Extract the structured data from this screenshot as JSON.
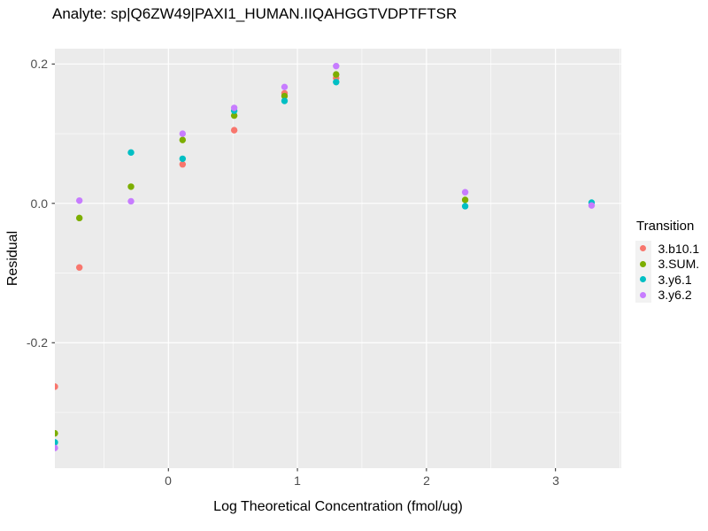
{
  "title": "Analyte: sp|Q6ZW49|PAXI1_HUMAN.IIQAHGGTVDPTFTSR",
  "axes": {
    "x_title": "Log Theoretical Concentration (fmol/ug)",
    "y_title": "Residual",
    "x_tick_labels": [
      "0",
      "1",
      "2",
      "3"
    ],
    "y_tick_labels": [
      "0.2",
      "0.0",
      "-0.2"
    ]
  },
  "legend": {
    "title": "Transition",
    "items": [
      {
        "label": "3.b10.1",
        "color": "#F8766D"
      },
      {
        "label": "3.SUM.",
        "color": "#7CAE00"
      },
      {
        "label": "3.y6.1",
        "color": "#00BFC4"
      },
      {
        "label": "3.y6.2",
        "color": "#C77CFF"
      }
    ]
  },
  "colors": {
    "panel_bg": "#EBEBEB",
    "gridline": "#FFFFFF",
    "tick_mark": "#333333",
    "tick_text": "#4D4D4D",
    "legend_key_bg": "#F2F2F2",
    "text": "#000000"
  },
  "chart_data": {
    "type": "scatter",
    "title": "Analyte: sp|Q6ZW49|PAXI1_HUMAN.IIQAHGGTVDPTFTSR",
    "xlabel": "Log Theoretical Concentration (fmol/ug)",
    "ylabel": "Residual",
    "xlim": [
      -0.88,
      3.51
    ],
    "ylim": [
      -0.38,
      0.222
    ],
    "x_major_ticks": [
      0,
      1,
      2,
      3
    ],
    "x_minor_ticks": [
      -0.5,
      0.5,
      1.5,
      2.5,
      3.5
    ],
    "y_major_ticks": [
      0.2,
      0.0,
      -0.2
    ],
    "y_minor_ticks": [
      0.1,
      -0.1,
      -0.3
    ],
    "grid": "major and minor white gridlines on grey panel",
    "legend_position": "right",
    "legend_title": "Transition",
    "point_radius_px": 3.7,
    "series": [
      {
        "name": "3.b10.1",
        "color": "#F8766D",
        "points": [
          [
            -0.88,
            -0.263
          ],
          [
            -0.69,
            -0.092
          ],
          [
            0.11,
            0.056
          ],
          [
            0.51,
            0.105
          ],
          [
            0.9,
            0.158
          ],
          [
            1.3,
            0.18
          ]
        ]
      },
      {
        "name": "3.SUM.",
        "color": "#7CAE00",
        "points": [
          [
            -0.88,
            -0.33
          ],
          [
            -0.69,
            -0.021
          ],
          [
            -0.29,
            0.024
          ],
          [
            0.11,
            0.091
          ],
          [
            0.51,
            0.126
          ],
          [
            0.9,
            0.154
          ],
          [
            1.3,
            0.185
          ],
          [
            2.3,
            0.005
          ]
        ]
      },
      {
        "name": "3.y6.1",
        "color": "#00BFC4",
        "points": [
          [
            -0.88,
            -0.343
          ],
          [
            -0.29,
            0.073
          ],
          [
            0.11,
            0.064
          ],
          [
            0.51,
            0.133
          ],
          [
            0.9,
            0.147
          ],
          [
            1.3,
            0.174
          ],
          [
            2.3,
            -0.004
          ],
          [
            3.28,
            0.001
          ]
        ]
      },
      {
        "name": "3.y6.2",
        "color": "#C77CFF",
        "points": [
          [
            -0.88,
            -0.351
          ],
          [
            -0.69,
            0.004
          ],
          [
            -0.29,
            0.003
          ],
          [
            0.11,
            0.1
          ],
          [
            0.51,
            0.137
          ],
          [
            0.9,
            0.167
          ],
          [
            1.3,
            0.197
          ],
          [
            2.3,
            0.016
          ],
          [
            3.28,
            -0.003
          ]
        ]
      }
    ]
  }
}
